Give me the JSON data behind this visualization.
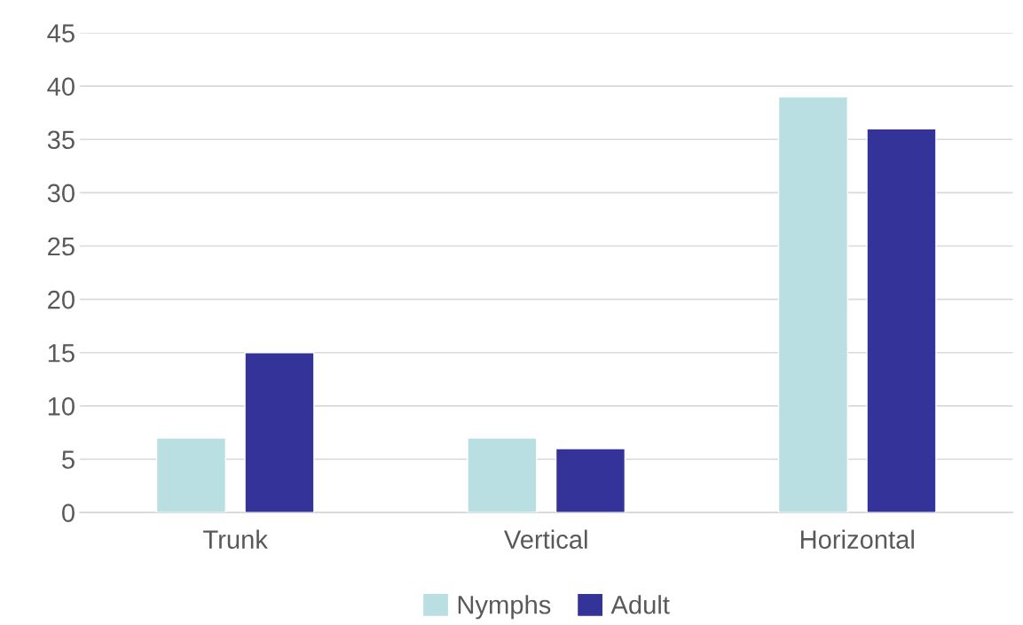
{
  "chart_data": {
    "type": "bar",
    "categories": [
      "Trunk",
      "Vertical",
      "Horizontal"
    ],
    "series": [
      {
        "name": "Nymphs",
        "color": "#b9dfe2",
        "values": [
          7,
          7,
          39
        ]
      },
      {
        "name": "Adult",
        "color": "#343399",
        "values": [
          15,
          6,
          36
        ]
      }
    ],
    "ylim": [
      0,
      45
    ],
    "yticks": [
      0,
      5,
      10,
      15,
      20,
      25,
      30,
      35,
      40,
      45
    ],
    "grid": "y",
    "legend": "bottom"
  }
}
